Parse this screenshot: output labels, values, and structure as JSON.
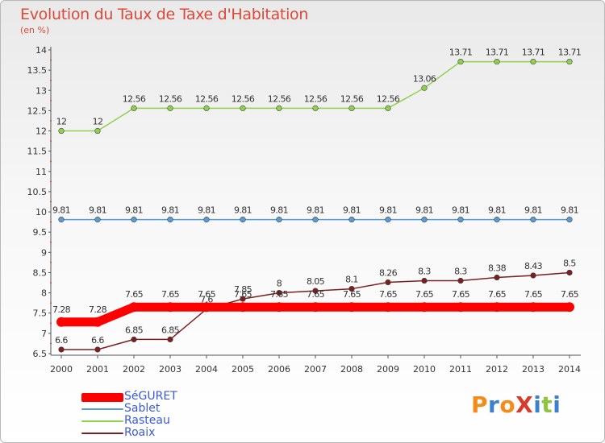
{
  "header": {
    "title": "Evolution du Taux de Taxe d'Habitation",
    "unit": "(en %)"
  },
  "chart_data": {
    "type": "line",
    "title": "Evolution du Taux de Taxe d'Habitation",
    "ylabel": "(en %)",
    "xlabel": "",
    "ylim": [
      6.5,
      14
    ],
    "yticks": [
      "6.5",
      "7",
      "7.5",
      "8",
      "8.5",
      "9",
      "9.5",
      "10",
      "10.5",
      "11",
      "11.5",
      "12",
      "12.5",
      "13",
      "13.5",
      "14"
    ],
    "categories": [
      "2000",
      "2001",
      "2002",
      "2003",
      "2004",
      "2005",
      "2006",
      "2007",
      "2008",
      "2009",
      "2010",
      "2011",
      "2012",
      "2013",
      "2014"
    ],
    "grid": false,
    "legend_position": "bottom-left",
    "series": [
      {
        "name": "Rasteau",
        "color": "#8fd14f",
        "values": [
          12,
          12,
          12.56,
          12.56,
          12.56,
          12.56,
          12.56,
          12.56,
          12.56,
          12.56,
          13.06,
          13.71,
          13.71,
          13.71,
          13.71
        ],
        "labels": [
          "12",
          "12",
          "12.56",
          "12.56",
          "12.56",
          "12.56",
          "12.56",
          "12.56",
          "12.56",
          "12.56",
          "13.06",
          "13.71",
          "13.71",
          "13.71",
          "13.71"
        ]
      },
      {
        "name": "Sablet",
        "color": "#5b9bd5",
        "values": [
          9.81,
          9.81,
          9.81,
          9.81,
          9.81,
          9.81,
          9.81,
          9.81,
          9.81,
          9.81,
          9.81,
          9.81,
          9.81,
          9.81,
          9.81
        ],
        "labels": [
          "9.81",
          "9.81",
          "9.81",
          "9.81",
          "9.81",
          "9.81",
          "9.81",
          "9.81",
          "9.81",
          "9.81",
          "9.81",
          "9.81",
          "9.81",
          "9.81",
          "9.81"
        ]
      },
      {
        "name": "Roaix",
        "color": "#7b2020",
        "values": [
          6.6,
          6.6,
          6.85,
          6.85,
          7.6,
          7.85,
          8,
          8.05,
          8.1,
          8.26,
          8.3,
          8.3,
          8.38,
          8.43,
          8.5
        ],
        "labels": [
          "6.6",
          "6.6",
          "6.85",
          "6.85",
          "7.6",
          "7.85",
          "8",
          "8.05",
          "8.1",
          "8.26",
          "8.3",
          "8.3",
          "8.38",
          "8.43",
          "8.5"
        ]
      },
      {
        "name": "SéGURET",
        "color": "#ff0000",
        "values": [
          7.28,
          7.28,
          7.65,
          7.65,
          7.65,
          7.65,
          7.65,
          7.65,
          7.65,
          7.65,
          7.65,
          7.65,
          7.65,
          7.65,
          7.65
        ],
        "labels": [
          "7.28",
          "7.28",
          "7.65",
          "7.65",
          "7.65",
          "7.65",
          "7.65",
          "7.65",
          "7.65",
          "7.65",
          "7.65",
          "7.65",
          "7.65",
          "7.65",
          "7.65"
        ]
      }
    ]
  },
  "legend": {
    "items": [
      {
        "label": "SéGURET",
        "color": "#ff0000"
      },
      {
        "label": "Sablet",
        "color": "#5b9bd5"
      },
      {
        "label": "Rasteau",
        "color": "#8fd14f"
      },
      {
        "label": "Roaix",
        "color": "#7b2020"
      }
    ]
  },
  "logo": {
    "text": "ProXiti",
    "colors": [
      "#f28c1a",
      "#3a7fd0",
      "#f28c1a",
      "#d93a2b",
      "#3a7fd0",
      "#8cc63f",
      "#3a7fd0"
    ]
  }
}
